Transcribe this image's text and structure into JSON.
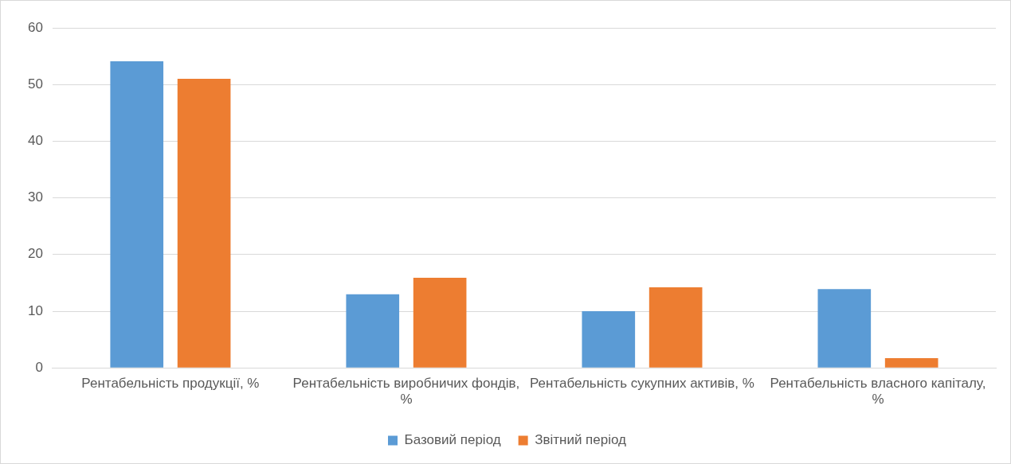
{
  "chart_data": {
    "type": "bar",
    "categories": [
      "Рентабельність продукції, %",
      "Рентабельність виробничих фондів, %",
      "Рентабельність сукупних активів, %",
      "Рентабельність власного капіталу, %"
    ],
    "series": [
      {
        "name": "Базовий період",
        "color": "#5b9bd5",
        "values": [
          54.1,
          13,
          10,
          13.9
        ]
      },
      {
        "name": "Звітний період",
        "color": "#ed7d31",
        "values": [
          51,
          15.9,
          14.2,
          1.7
        ]
      }
    ],
    "ylim": [
      0,
      60
    ],
    "yticks": [
      0,
      10,
      20,
      30,
      40,
      50,
      60
    ],
    "grid": "y",
    "legend": "bottom"
  }
}
